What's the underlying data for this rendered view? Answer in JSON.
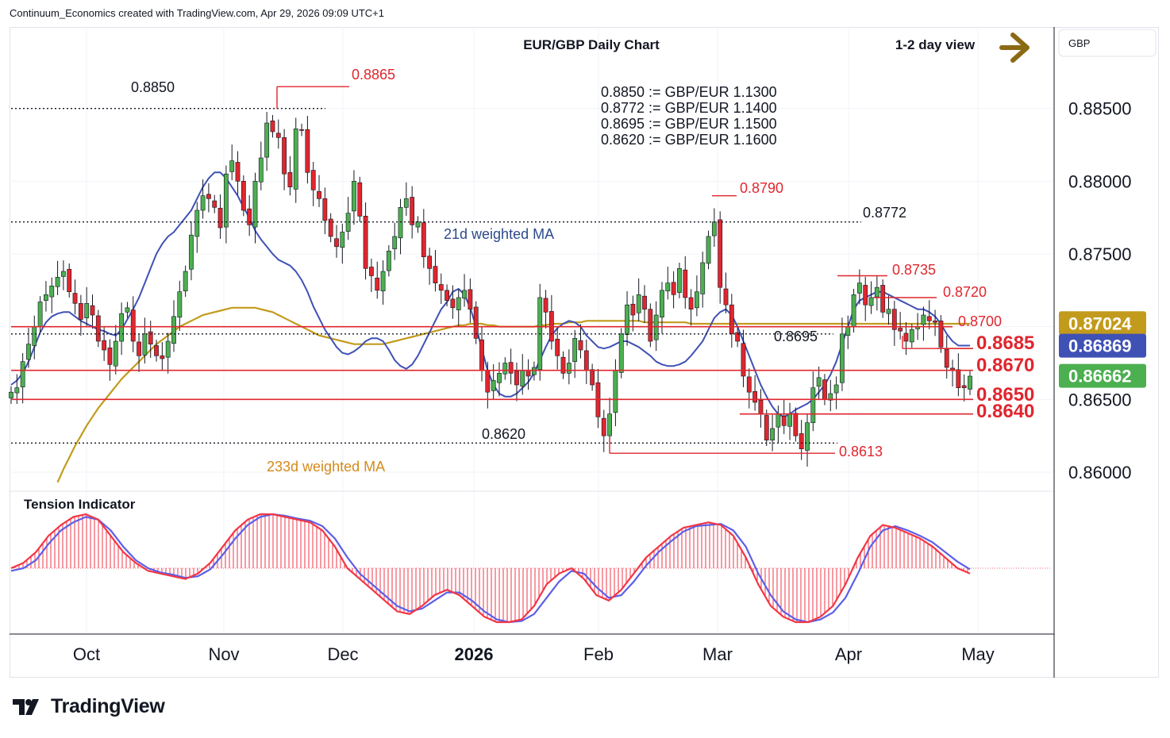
{
  "header": {
    "text": "Continuum_Economics created with TradingView.com, Apr 29, 2026 09:09 UTC+1"
  },
  "brand": {
    "name": "TradingView"
  },
  "colors": {
    "up": "#4caf50",
    "down": "#e0262e",
    "wma21": "#3f51b5",
    "wma233": "#c29b1c",
    "level_red": "#e0262e",
    "tension_red": "#f23645",
    "tension_blue": "#5b5fe8",
    "annotation_blue": "#2d4a8a",
    "annotation_gold": "#d58a1a",
    "arrow": "#8a6a14"
  },
  "chart_data": {
    "type": "candlestick",
    "title": "EUR/GBP Daily Chart",
    "view_label": "1-2 day view",
    "currency_label": "GBP",
    "ylim": [
      0.8588,
      0.8906
    ],
    "y_ticks": [
      "0.88500",
      "0.88000",
      "0.87500",
      "0.87000",
      "0.86500",
      "0.86000"
    ],
    "x_ticks": [
      "Oct",
      "Nov",
      "Dec",
      "2026",
      "Feb",
      "Mar",
      "Apr",
      "May"
    ],
    "conversion_notes": [
      "0.8850 := GBP/EUR 1.1300",
      "0.8772 := GBP/EUR 1.1400",
      "0.8695 := GBP/EUR 1.1500",
      "0.8620 := GBP/EUR 1.1600"
    ],
    "dotted_levels": [
      {
        "label": "0.8850",
        "value": 0.885
      },
      {
        "label": "0.8772",
        "value": 0.8772
      },
      {
        "label": "0.8695",
        "value": 0.8695
      },
      {
        "label": "0.8620",
        "value": 0.862
      }
    ],
    "support_resistance": [
      {
        "label": "0.8700",
        "value": 0.87
      },
      {
        "label": "0.8685",
        "value": 0.8685
      },
      {
        "label": "0.8670",
        "value": 0.867
      },
      {
        "label": "0.8650",
        "value": 0.865
      },
      {
        "label": "0.8640",
        "value": 0.864
      }
    ],
    "swing_points": [
      {
        "label": "0.8865",
        "value": 0.8865
      },
      {
        "label": "0.8790",
        "value": 0.879
      },
      {
        "label": "0.8735",
        "value": 0.8735
      },
      {
        "label": "0.8720",
        "value": 0.872
      },
      {
        "label": "0.8613",
        "value": 0.8613
      }
    ],
    "price_tags": [
      {
        "label": "0.87024",
        "value": 0.87024,
        "series": "233d weighted MA"
      },
      {
        "label": "0.86869",
        "value": 0.86869,
        "series": "21d weighted MA"
      },
      {
        "label": "0.86662",
        "value": 0.86662,
        "series": "EUR/GBP"
      }
    ],
    "ma_labels": {
      "short": "21d weighted MA",
      "long": "233d weighted MA"
    },
    "indicator": {
      "name": "Tension Indicator"
    },
    "close_path": [
      0.8655,
      0.8658,
      0.8676,
      0.8688,
      0.87,
      0.8717,
      0.8722,
      0.8728,
      0.8734,
      0.8738,
      0.8724,
      0.8716,
      0.8705,
      0.8716,
      0.8708,
      0.869,
      0.8684,
      0.8674,
      0.869,
      0.8709,
      0.8713,
      0.869,
      0.868,
      0.8695,
      0.8688,
      0.868,
      0.8678,
      0.869,
      0.8707,
      0.8724,
      0.8738,
      0.8763,
      0.878,
      0.879,
      0.8788,
      0.8782,
      0.8768,
      0.8805,
      0.8814,
      0.88,
      0.878,
      0.877,
      0.88,
      0.8816,
      0.884,
      0.8834,
      0.883,
      0.8805,
      0.8796,
      0.8836,
      0.8835,
      0.8806,
      0.8794,
      0.8788,
      0.8773,
      0.8762,
      0.8755,
      0.8765,
      0.8778,
      0.88,
      0.8776,
      0.874,
      0.8735,
      0.8725,
      0.8738,
      0.8752,
      0.8762,
      0.8782,
      0.8788,
      0.877,
      0.8772,
      0.8748,
      0.874,
      0.873,
      0.8725,
      0.8718,
      0.8713,
      0.872,
      0.8725,
      0.8712,
      0.8692,
      0.867,
      0.8655,
      0.8663,
      0.8668,
      0.8675,
      0.8668,
      0.866,
      0.867,
      0.8666,
      0.8672,
      0.872,
      0.871,
      0.869,
      0.868,
      0.8668,
      0.8675,
      0.8692,
      0.8684,
      0.867,
      0.866,
      0.8638,
      0.8625,
      0.864,
      0.867,
      0.8695,
      0.8715,
      0.8708,
      0.8722,
      0.8712,
      0.869,
      0.8708,
      0.8725,
      0.873,
      0.8722,
      0.874,
      0.872,
      0.8712,
      0.8724,
      0.8744,
      0.8762,
      0.8772,
      0.8727,
      0.8715,
      0.8695,
      0.869,
      0.8666,
      0.8655,
      0.8648,
      0.864,
      0.8622,
      0.863,
      0.864,
      0.8632,
      0.864,
      0.8625,
      0.8616,
      0.8634,
      0.8658,
      0.8665,
      0.865,
      0.8654,
      0.866,
      0.8695,
      0.87,
      0.8722,
      0.873,
      0.8715,
      0.872,
      0.8727,
      0.871,
      0.8712,
      0.8698,
      0.8697,
      0.869,
      0.8698,
      0.87,
      0.8708,
      0.8704,
      0.8703,
      0.8686,
      0.8672,
      0.867,
      0.8658,
      0.8658,
      0.8666
    ],
    "wma21_path": [
      0.866,
      0.8663,
      0.8668,
      0.8676,
      0.8686,
      0.8696,
      0.8703,
      0.8707,
      0.8709,
      0.871,
      0.871,
      0.8707,
      0.8704,
      0.8702,
      0.87,
      0.8698,
      0.8697,
      0.8695,
      0.8694,
      0.8698,
      0.8705,
      0.8712,
      0.872,
      0.873,
      0.874,
      0.875,
      0.8757,
      0.8762,
      0.8765,
      0.877,
      0.8775,
      0.878,
      0.8788,
      0.8796,
      0.8802,
      0.8806,
      0.8806,
      0.8802,
      0.8796,
      0.879,
      0.8782,
      0.8775,
      0.8766,
      0.876,
      0.8755,
      0.875,
      0.8746,
      0.8744,
      0.8742,
      0.8738,
      0.8732,
      0.8724,
      0.8714,
      0.8706,
      0.8698,
      0.8692,
      0.8686,
      0.8682,
      0.8681,
      0.8683,
      0.8686,
      0.869,
      0.8692,
      0.8692,
      0.869,
      0.8684,
      0.8677,
      0.8673,
      0.8671,
      0.8674,
      0.868,
      0.8688,
      0.8696,
      0.8704,
      0.8712,
      0.8717,
      0.8724,
      0.8726,
      0.8722,
      0.8713,
      0.87,
      0.8685,
      0.867,
      0.866,
      0.8654,
      0.8652,
      0.8652,
      0.8654,
      0.8658,
      0.8662,
      0.8668,
      0.8677,
      0.8686,
      0.8694,
      0.8699,
      0.8702,
      0.8704,
      0.8703,
      0.87,
      0.8694,
      0.869,
      0.8686,
      0.8685,
      0.8686,
      0.8688,
      0.869,
      0.869,
      0.8688,
      0.8686,
      0.8683,
      0.868,
      0.8676,
      0.8674,
      0.8673,
      0.8673,
      0.8674,
      0.8676,
      0.868,
      0.8685,
      0.869,
      0.8698,
      0.8706,
      0.871,
      0.8712,
      0.8708,
      0.87,
      0.869,
      0.868,
      0.867,
      0.866,
      0.8652,
      0.8645,
      0.864,
      0.8638,
      0.864,
      0.8643,
      0.8645,
      0.8647,
      0.865,
      0.8655,
      0.866,
      0.8667,
      0.8676,
      0.8688,
      0.87,
      0.8712,
      0.8718,
      0.872,
      0.8722,
      0.8724,
      0.8724,
      0.8722,
      0.872,
      0.8718,
      0.8716,
      0.8714,
      0.8712,
      0.8712,
      0.871,
      0.8707,
      0.8702,
      0.8695,
      0.869,
      0.8687,
      0.8687,
      0.8687
    ],
    "wma233_path": [
      0.8504,
      0.8517,
      0.8529,
      0.8541,
      0.8552,
      0.8563,
      0.8574,
      0.8584,
      0.8593,
      0.8602,
      0.861,
      0.8618,
      0.8625,
      0.8632,
      0.8638,
      0.8644,
      0.8649,
      0.8654,
      0.8659,
      0.8664,
      0.8668,
      0.8672,
      0.8676,
      0.868,
      0.8684,
      0.8688,
      0.8691,
      0.8694,
      0.8697,
      0.87,
      0.8702,
      0.8704,
      0.8706,
      0.8708,
      0.8709,
      0.871,
      0.8711,
      0.8712,
      0.8713,
      0.8713,
      0.8713,
      0.8713,
      0.8713,
      0.8712,
      0.8711,
      0.871,
      0.8708,
      0.8706,
      0.8704,
      0.8702,
      0.87,
      0.8698,
      0.8696,
      0.8694,
      0.8693,
      0.8692,
      0.8691,
      0.869,
      0.8689,
      0.8688,
      0.8688,
      0.8688,
      0.8688,
      0.8688,
      0.8688,
      0.8689,
      0.869,
      0.8691,
      0.8692,
      0.8693,
      0.8694,
      0.8695,
      0.8696,
      0.8697,
      0.8698,
      0.8699,
      0.87,
      0.8701,
      0.8701,
      0.8702,
      0.8702,
      0.8702,
      0.8701,
      0.8701,
      0.87,
      0.87,
      0.87,
      0.87,
      0.87,
      0.87,
      0.87,
      0.8701,
      0.8701,
      0.8702,
      0.8702,
      0.8702,
      0.8703,
      0.8703,
      0.8703,
      0.8704,
      0.8704,
      0.8704,
      0.8704,
      0.8704,
      0.8704,
      0.8704,
      0.8704,
      0.8704,
      0.8704,
      0.8703,
      0.8703,
      0.8703,
      0.8703,
      0.8703,
      0.8703,
      0.8703,
      0.8703,
      0.8702,
      0.8702,
      0.8702,
      0.8702,
      0.8702,
      0.8702,
      0.8702,
      0.8702,
      0.8702,
      0.8702,
      0.8702,
      0.8702,
      0.8702,
      0.8702,
      0.8702,
      0.8702,
      0.8702,
      0.8702,
      0.8702,
      0.8702,
      0.8702,
      0.8702,
      0.8702,
      0.8702,
      0.8702,
      0.8702,
      0.8702,
      0.8702,
      0.8702,
      0.8702,
      0.8702,
      0.8702,
      0.8702,
      0.8702,
      0.8702,
      0.8702,
      0.8702,
      0.8702,
      0.8702,
      0.8702,
      0.8702,
      0.8702,
      0.8702,
      0.8702,
      0.8702,
      0.8702,
      0.8702,
      0.8702,
      0.8702
    ],
    "tension_path": [
      0.0,
      0.1,
      0.3,
      0.6,
      0.8,
      0.95,
      1.0,
      0.9,
      0.6,
      0.3,
      0.1,
      -0.05,
      -0.1,
      -0.15,
      -0.2,
      -0.1,
      0.1,
      0.4,
      0.7,
      0.9,
      1.0,
      1.0,
      0.95,
      0.9,
      0.85,
      0.7,
      0.4,
      0.0,
      -0.2,
      -0.4,
      -0.6,
      -0.8,
      -0.85,
      -0.7,
      -0.5,
      -0.4,
      -0.5,
      -0.7,
      -0.9,
      -1.0,
      -1.0,
      -0.95,
      -0.7,
      -0.3,
      -0.1,
      0.0,
      -0.2,
      -0.5,
      -0.6,
      -0.4,
      -0.1,
      0.2,
      0.4,
      0.6,
      0.75,
      0.8,
      0.85,
      0.8,
      0.6,
      0.2,
      -0.3,
      -0.7,
      -0.9,
      -1.0,
      -1.0,
      -0.9,
      -0.7,
      -0.3,
      0.2,
      0.6,
      0.8,
      0.75,
      0.65,
      0.55,
      0.4,
      0.2,
      0.0,
      -0.1
    ],
    "tension_signal_path": [
      -0.05,
      0.0,
      0.15,
      0.45,
      0.7,
      0.85,
      0.95,
      0.9,
      0.7,
      0.4,
      0.15,
      0.0,
      -0.08,
      -0.12,
      -0.18,
      -0.15,
      -0.02,
      0.25,
      0.55,
      0.8,
      0.95,
      1.0,
      0.97,
      0.92,
      0.88,
      0.78,
      0.55,
      0.2,
      -0.1,
      -0.3,
      -0.5,
      -0.7,
      -0.8,
      -0.75,
      -0.6,
      -0.45,
      -0.45,
      -0.6,
      -0.8,
      -0.95,
      -1.0,
      -0.98,
      -0.85,
      -0.55,
      -0.25,
      -0.05,
      -0.1,
      -0.35,
      -0.55,
      -0.5,
      -0.25,
      0.05,
      0.3,
      0.5,
      0.68,
      0.78,
      0.8,
      0.82,
      0.7,
      0.4,
      -0.1,
      -0.5,
      -0.8,
      -0.95,
      -1.0,
      -0.95,
      -0.82,
      -0.55,
      -0.1,
      0.4,
      0.7,
      0.78,
      0.7,
      0.6,
      0.48,
      0.3,
      0.12,
      -0.02
    ]
  }
}
